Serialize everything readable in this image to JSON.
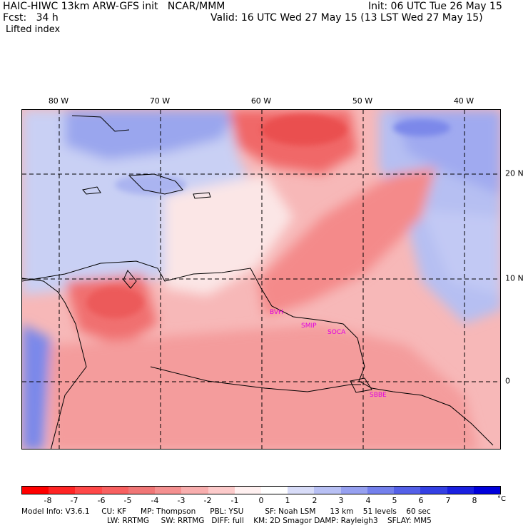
{
  "header": {
    "line1_left": "HAIC-HIWC 13km ARW-GFS init   NCAR/MMM",
    "line1_right": "Init: 06 UTC Tue 26 May 15",
    "line2_left": "Fcst:   34 h",
    "line2_right": "Valid: 16 UTC Wed 27 May 15 (13 LST Wed 27 May 15)",
    "field": "Lifted index"
  },
  "map": {
    "lon_labels": [
      "80 W",
      "70 W",
      "60 W",
      "50 W",
      "40 W"
    ],
    "lat_labels": [
      "20 N",
      "10 N",
      "0"
    ],
    "stations": [
      "BVH",
      "SMIP",
      "SOCA",
      "SBBE"
    ],
    "colors": {
      "land_outline": "#000000",
      "grid": "#000000",
      "station_label": "#e000e0"
    }
  },
  "colorbar": {
    "tick_labels": [
      "-8",
      "-7",
      "-6",
      "-5",
      "-4",
      "-3",
      "-2",
      "-1",
      "0",
      "1",
      "2",
      "3",
      "4",
      "5",
      "6",
      "7",
      "8"
    ],
    "unit": "°C",
    "colors": [
      "#ff0000",
      "#ff2424",
      "#ff4848",
      "#f86060",
      "#f07676",
      "#f49090",
      "#f8aeae",
      "#fccaca",
      "#fff0f0",
      "#ffffff",
      "#d8dcf8",
      "#b8c0f4",
      "#96a0f0",
      "#7480ec",
      "#5460e8",
      "#3440e4",
      "#1a20e0",
      "#0000dc"
    ]
  },
  "model_info": {
    "line1": "Model Info: V3.6.1     CU: KF      MP: Thompson      PBL: YSU         SF: Noah LSM      13 km    51 levels    60 sec",
    "line2": "LW: RRTMG     SW: RRTMG   DIFF: full    KM: 2D Smagor DAMP: Rayleigh3    SFLAY: MM5"
  }
}
